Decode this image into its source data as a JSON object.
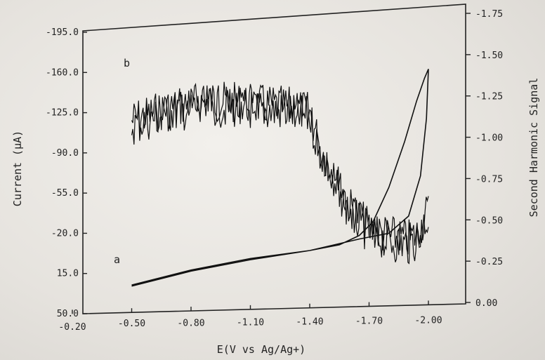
{
  "chart_data": {
    "type": "line",
    "xlabel": "E(V vs Ag/Ag+)",
    "ylabel_left": "Current (μA)",
    "ylabel_right": "Second Harmonic Signal",
    "x_ticks": [
      "-0.20",
      "-0.50",
      "-0.80",
      "-1.10",
      "-1.40",
      "-1.70",
      "-2.00"
    ],
    "x_tick_values": [
      -0.2,
      -0.5,
      -0.8,
      -1.1,
      -1.4,
      -1.7,
      -2.0
    ],
    "left_ticks": [
      "-195.0",
      "-160.0",
      "-125.0",
      "-90.0",
      "-55.0",
      "-20.0",
      "15.0",
      "50.0"
    ],
    "left_tick_values": [
      -195,
      -160,
      -125,
      -90,
      -55,
      -20,
      15,
      50
    ],
    "right_ticks": [
      "-1.75",
      "-1.50",
      "-1.25",
      "-1.00",
      "-0.75",
      "-0.50",
      "-0.25",
      "0.00"
    ],
    "right_tick_values": [
      -1.75,
      -1.5,
      -1.25,
      -1.0,
      -0.75,
      -0.5,
      -0.25,
      0.0
    ],
    "xlim": [
      -0.2,
      -2.2
    ],
    "ylim_left": [
      50,
      -208
    ],
    "ylim_right": [
      0.0,
      -1.86
    ],
    "series": [
      {
        "name": "a",
        "axis": "left",
        "forward": [
          [
            -0.5,
            25
          ],
          [
            -0.8,
            12
          ],
          [
            -1.1,
            2
          ],
          [
            -1.4,
            -5
          ],
          [
            -1.55,
            -10
          ],
          [
            -1.65,
            -18
          ],
          [
            -1.72,
            -30
          ],
          [
            -1.8,
            -60
          ],
          [
            -1.88,
            -100
          ],
          [
            -1.94,
            -135
          ],
          [
            -1.98,
            -155
          ],
          [
            -2.0,
            -163
          ]
        ],
        "reverse": [
          [
            -2.0,
            -163
          ],
          [
            -1.99,
            -120
          ],
          [
            -1.96,
            -70
          ],
          [
            -1.9,
            -35
          ],
          [
            -1.8,
            -20
          ],
          [
            -1.65,
            -15
          ],
          [
            -1.4,
            -5
          ],
          [
            -1.1,
            3
          ],
          [
            -0.8,
            13
          ],
          [
            -0.5,
            26
          ]
        ]
      },
      {
        "name": "b",
        "axis": "right",
        "mean": [
          [
            -0.5,
            -1.1
          ],
          [
            -0.7,
            -1.18
          ],
          [
            -0.9,
            -1.22
          ],
          [
            -1.1,
            -1.2
          ],
          [
            -1.3,
            -1.18
          ],
          [
            -1.4,
            -1.15
          ],
          [
            -1.45,
            -0.95
          ],
          [
            -1.5,
            -0.82
          ],
          [
            -1.55,
            -0.7
          ],
          [
            -1.6,
            -0.58
          ],
          [
            -1.7,
            -0.45
          ],
          [
            -1.8,
            -0.4
          ],
          [
            -1.9,
            -0.38
          ],
          [
            -1.95,
            -0.42
          ],
          [
            -1.98,
            -0.52
          ],
          [
            -2.0,
            -0.55
          ]
        ],
        "noise_amplitude": 0.08
      }
    ],
    "annotations": [
      "a",
      "b"
    ]
  }
}
